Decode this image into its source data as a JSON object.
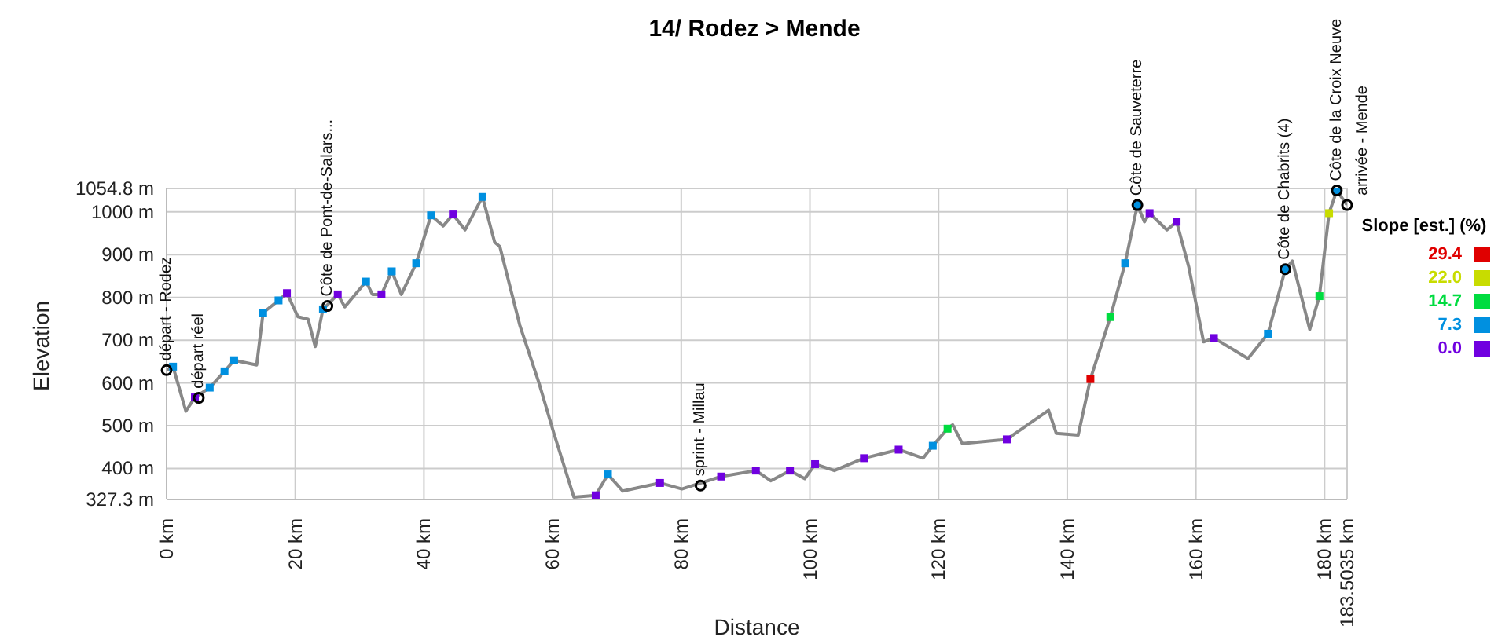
{
  "chart_data": {
    "type": "line",
    "title": "14/ Rodez > Mende",
    "xlabel": "Distance",
    "ylabel": "Elevation",
    "legend_title": "Slope [est.] (%)",
    "legend": "right",
    "x": [
      0,
      1,
      3,
      4.4,
      6.7,
      9,
      10.5,
      14,
      15,
      17.4,
      18.7,
      20.4,
      22,
      23.1,
      24.3,
      26.6,
      27.7,
      31,
      32,
      33.4,
      35,
      36.5,
      38.8,
      41.1,
      43,
      44.5,
      46.4,
      49.1,
      51,
      51.8,
      54.9,
      57.9,
      60.2,
      63.3,
      66.7,
      68.6,
      70.9,
      76.7,
      80.1,
      86.2,
      91.6,
      93.9,
      96.9,
      99.2,
      100.8,
      103.8,
      108.4,
      113.8,
      117.6,
      119.1,
      121.4,
      122.2,
      123.7,
      130.6,
      137.1,
      138.3,
      141.7,
      143.6,
      146.7,
      149,
      150.9,
      152,
      152.8,
      155.5,
      157,
      158.9,
      161.2,
      162.8,
      168.1,
      171.2,
      173.9,
      175,
      177.7,
      179.2,
      180.7,
      181.9,
      183.5
    ],
    "series": [
      {
        "type": "line",
        "color": "#888888",
        "marker": "none",
        "values": [
          630,
          638,
          534,
          566,
          589,
          627,
          653,
          642,
          764,
          793,
          810,
          755,
          749,
          685,
          772,
          807,
          778,
          837,
          807,
          807,
          861,
          807,
          880,
          992,
          967,
          994,
          958,
          1035,
          929,
          919,
          735,
          599,
          482,
          333,
          337,
          386,
          347,
          366,
          352,
          381,
          395,
          371,
          395,
          376,
          410,
          395,
          424,
          444,
          424,
          453,
          493,
          502,
          458,
          468,
          536,
          482,
          478,
          609,
          754,
          880,
          1016,
          977,
          997,
          958,
          977,
          871,
          696,
          705,
          657,
          715,
          866,
          885,
          725,
          803,
          997,
          1050,
          1016
        ]
      },
      {
        "type": "scatter",
        "name": "29.4",
        "color": "#e00000",
        "marker": "square",
        "x": [
          143.6
        ],
        "values": [
          609
        ]
      },
      {
        "type": "scatter",
        "name": "22.0",
        "color": "#c8dc00",
        "marker": "square",
        "x": [
          180.7
        ],
        "values": [
          997
        ]
      },
      {
        "type": "scatter",
        "name": "14.7",
        "color": "#00dc40",
        "marker": "square",
        "x": [
          121.4,
          146.7,
          179.2
        ],
        "values": [
          493,
          754,
          803
        ]
      },
      {
        "type": "scatter",
        "name": "7.3",
        "color": "#0090e0",
        "marker": "square",
        "x": [
          1,
          6.7,
          9,
          10.5,
          15,
          17.4,
          24.3,
          31,
          35,
          38.8,
          41.1,
          49.1,
          68.6,
          119.1,
          149,
          150.9,
          171.2,
          173.9,
          181.9
        ],
        "values": [
          638,
          589,
          627,
          653,
          764,
          793,
          772,
          837,
          861,
          880,
          992,
          1035,
          386,
          453,
          880,
          1016,
          715,
          866,
          1050
        ]
      },
      {
        "type": "scatter",
        "name": "0.0",
        "color": "#7000e0",
        "marker": "square",
        "x": [
          4.4,
          18.7,
          26.6,
          33.4,
          44.5,
          66.7,
          76.7,
          86.2,
          91.6,
          96.9,
          100.8,
          108.4,
          113.8,
          130.6,
          152.8,
          157,
          162.8
        ],
        "values": [
          566,
          810,
          807,
          807,
          994,
          337,
          366,
          381,
          395,
          395,
          410,
          424,
          444,
          468,
          997,
          977,
          705
        ]
      }
    ],
    "xlim": [
      0,
      183.5035
    ],
    "xticks": [
      {
        "value": 0,
        "label": "0 km"
      },
      {
        "value": 20,
        "label": "20 km"
      },
      {
        "value": 40,
        "label": "40 km"
      },
      {
        "value": 60,
        "label": "60 km"
      },
      {
        "value": 80,
        "label": "80 km"
      },
      {
        "value": 100,
        "label": "100 km"
      },
      {
        "value": 120,
        "label": "120 km"
      },
      {
        "value": 140,
        "label": "140 km"
      },
      {
        "value": 160,
        "label": "160 km"
      },
      {
        "value": 180,
        "label": "180 km"
      },
      {
        "value": 183.5035,
        "label": "183.5035 km"
      }
    ],
    "ylim": [
      327.3,
      1054.8
    ],
    "yticks": [
      {
        "value": 327.3,
        "label": "327.3 m"
      },
      {
        "value": 400,
        "label": "400 m"
      },
      {
        "value": 500,
        "label": "500 m"
      },
      {
        "value": 600,
        "label": "600 m"
      },
      {
        "value": 700,
        "label": "700 m"
      },
      {
        "value": 800,
        "label": "800 m"
      },
      {
        "value": 900,
        "label": "900 m"
      },
      {
        "value": 1000,
        "label": "1000 m"
      },
      {
        "value": 1054.8,
        "label": "1054.8 m"
      }
    ],
    "grid": true,
    "line_style": "solid",
    "annotations": [
      {
        "text": "départ - Rodez",
        "x": 0,
        "y": 630
      },
      {
        "text": "départ réel",
        "x": 5,
        "y": 565
      },
      {
        "text": "Côte de Pont-de-Salars...",
        "x": 25,
        "y": 780
      },
      {
        "text": "sprint - Millau",
        "x": 83,
        "y": 360
      },
      {
        "text": "Côte de Sauveterre",
        "x": 150.9,
        "y": 1016
      },
      {
        "text": "Côte de Chabrits (4)",
        "x": 173.9,
        "y": 866
      },
      {
        "text": "Côte de la Croix Neuve",
        "x": 181.9,
        "y": 1050
      },
      {
        "text": "arrivée - Mende",
        "x": 183.5,
        "y": 1016
      }
    ]
  }
}
